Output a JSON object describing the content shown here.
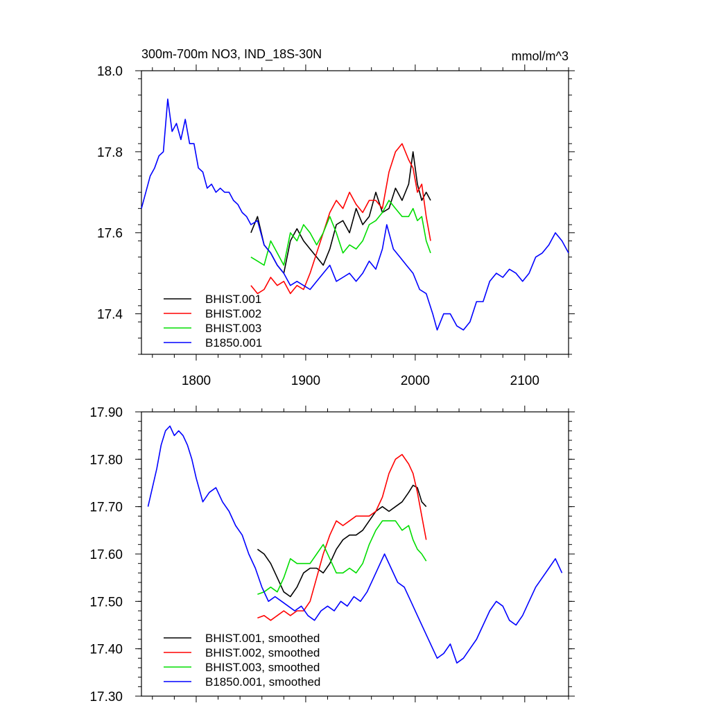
{
  "chart_data": [
    {
      "type": "line",
      "title": "300m-700m NO3, IND_18S-30N",
      "units": "mmol/m^3",
      "xlim": [
        1750,
        2140
      ],
      "ylim": [
        17.3,
        18.0
      ],
      "x_ticks": [
        1800,
        1900,
        2000,
        2100
      ],
      "x_tick_labels": [
        "1800",
        "1900",
        "2000",
        "2100"
      ],
      "y_ticks": [
        17.4,
        17.6,
        17.8,
        18.0
      ],
      "y_tick_labels": [
        "17.4",
        "17.6",
        "17.8",
        "18.0"
      ],
      "legend_position": "bottom-left",
      "series": [
        {
          "name": "BHIST.001",
          "color": "#000000",
          "x": [
            1850,
            1856,
            1862,
            1868,
            1874,
            1880,
            1886,
            1892,
            1898,
            1904,
            1910,
            1916,
            1922,
            1928,
            1934,
            1940,
            1946,
            1952,
            1958,
            1964,
            1970,
            1976,
            1982,
            1988,
            1994,
            1998,
            2002,
            2006,
            2010,
            2014
          ],
          "y": [
            17.6,
            17.64,
            17.57,
            17.55,
            17.52,
            17.5,
            17.58,
            17.61,
            17.58,
            17.56,
            17.54,
            17.52,
            17.56,
            17.62,
            17.63,
            17.6,
            17.66,
            17.62,
            17.64,
            17.7,
            17.65,
            17.66,
            17.71,
            17.68,
            17.72,
            17.8,
            17.72,
            17.68,
            17.7,
            17.68
          ]
        },
        {
          "name": "BHIST.002",
          "color": "#ff0000",
          "x": [
            1850,
            1856,
            1862,
            1868,
            1874,
            1880,
            1886,
            1892,
            1898,
            1904,
            1910,
            1916,
            1922,
            1928,
            1934,
            1940,
            1946,
            1952,
            1958,
            1964,
            1970,
            1976,
            1982,
            1988,
            1994,
            1998,
            2002,
            2006,
            2010,
            2014
          ],
          "y": [
            17.47,
            17.45,
            17.46,
            17.49,
            17.47,
            17.48,
            17.45,
            17.47,
            17.46,
            17.5,
            17.55,
            17.6,
            17.65,
            17.68,
            17.66,
            17.7,
            17.67,
            17.65,
            17.68,
            17.68,
            17.66,
            17.75,
            17.8,
            17.82,
            17.78,
            17.76,
            17.7,
            17.72,
            17.64,
            17.58
          ]
        },
        {
          "name": "BHIST.003",
          "color": "#00dd00",
          "x": [
            1850,
            1856,
            1862,
            1868,
            1874,
            1880,
            1886,
            1892,
            1898,
            1904,
            1910,
            1916,
            1922,
            1928,
            1934,
            1940,
            1946,
            1952,
            1958,
            1964,
            1970,
            1976,
            1982,
            1988,
            1994,
            1998,
            2002,
            2006,
            2010,
            2014
          ],
          "y": [
            17.54,
            17.53,
            17.52,
            17.58,
            17.55,
            17.52,
            17.6,
            17.58,
            17.62,
            17.6,
            17.57,
            17.6,
            17.64,
            17.6,
            17.55,
            17.57,
            17.56,
            17.58,
            17.62,
            17.63,
            17.65,
            17.68,
            17.66,
            17.64,
            17.64,
            17.66,
            17.63,
            17.64,
            17.58,
            17.55
          ]
        },
        {
          "name": "B1850.001",
          "color": "#0000ff",
          "x": [
            1750,
            1754,
            1758,
            1762,
            1766,
            1770,
            1774,
            1778,
            1782,
            1786,
            1790,
            1794,
            1798,
            1802,
            1806,
            1810,
            1814,
            1818,
            1822,
            1826,
            1830,
            1834,
            1838,
            1842,
            1846,
            1850,
            1856,
            1862,
            1868,
            1874,
            1880,
            1886,
            1892,
            1898,
            1904,
            1910,
            1916,
            1922,
            1928,
            1934,
            1940,
            1946,
            1952,
            1958,
            1964,
            1970,
            1974,
            1980,
            1986,
            1992,
            1998,
            2004,
            2010,
            2016,
            2020,
            2026,
            2032,
            2038,
            2044,
            2050,
            2056,
            2062,
            2068,
            2074,
            2080,
            2086,
            2092,
            2098,
            2104,
            2110,
            2116,
            2122,
            2128,
            2134,
            2140
          ],
          "y": [
            17.66,
            17.7,
            17.74,
            17.76,
            17.79,
            17.8,
            17.93,
            17.85,
            17.87,
            17.83,
            17.88,
            17.82,
            17.82,
            17.76,
            17.75,
            17.71,
            17.72,
            17.7,
            17.71,
            17.7,
            17.7,
            17.68,
            17.67,
            17.65,
            17.64,
            17.62,
            17.63,
            17.57,
            17.55,
            17.52,
            17.5,
            17.47,
            17.48,
            17.47,
            17.46,
            17.48,
            17.5,
            17.52,
            17.48,
            17.49,
            17.5,
            17.48,
            17.5,
            17.53,
            17.51,
            17.56,
            17.62,
            17.56,
            17.54,
            17.52,
            17.5,
            17.46,
            17.45,
            17.4,
            17.36,
            17.4,
            17.4,
            17.37,
            17.36,
            17.38,
            17.43,
            17.43,
            17.48,
            17.5,
            17.49,
            17.51,
            17.5,
            17.48,
            17.5,
            17.54,
            17.55,
            17.57,
            17.6,
            17.58,
            17.55
          ]
        }
      ]
    },
    {
      "type": "line",
      "xlim": [
        1750,
        2140
      ],
      "ylim": [
        17.3,
        17.9
      ],
      "x_ticks": [
        1800,
        1900,
        2000,
        2100
      ],
      "y_ticks": [
        17.3,
        17.4,
        17.5,
        17.6,
        17.7,
        17.8,
        17.9
      ],
      "y_tick_labels": [
        "17.30",
        "17.40",
        "17.50",
        "17.60",
        "17.70",
        "17.80",
        "17.90"
      ],
      "legend_position": "bottom-left",
      "series": [
        {
          "name": "BHIST.001, smoothed",
          "color": "#000000",
          "x": [
            1856,
            1862,
            1868,
            1874,
            1880,
            1886,
            1892,
            1898,
            1904,
            1910,
            1916,
            1922,
            1928,
            1934,
            1940,
            1946,
            1952,
            1958,
            1964,
            1970,
            1976,
            1982,
            1988,
            1994,
            1998,
            2002,
            2006,
            2010
          ],
          "y": [
            17.61,
            17.6,
            17.58,
            17.55,
            17.52,
            17.51,
            17.53,
            17.56,
            17.57,
            17.57,
            17.56,
            17.58,
            17.61,
            17.63,
            17.64,
            17.64,
            17.65,
            17.67,
            17.69,
            17.7,
            17.69,
            17.7,
            17.71,
            17.73,
            17.745,
            17.74,
            17.71,
            17.7
          ]
        },
        {
          "name": "BHIST.002, smoothed",
          "color": "#ff0000",
          "x": [
            1856,
            1862,
            1868,
            1874,
            1880,
            1886,
            1892,
            1898,
            1904,
            1910,
            1916,
            1922,
            1928,
            1934,
            1940,
            1946,
            1952,
            1958,
            1964,
            1970,
            1976,
            1982,
            1988,
            1994,
            1998,
            2002,
            2006,
            2010
          ],
          "y": [
            17.465,
            17.47,
            17.46,
            17.47,
            17.48,
            17.47,
            17.48,
            17.48,
            17.5,
            17.55,
            17.6,
            17.64,
            17.67,
            17.66,
            17.67,
            17.68,
            17.68,
            17.68,
            17.69,
            17.72,
            17.77,
            17.8,
            17.81,
            17.79,
            17.77,
            17.73,
            17.68,
            17.63
          ]
        },
        {
          "name": "BHIST.003, smoothed",
          "color": "#00dd00",
          "x": [
            1856,
            1862,
            1868,
            1874,
            1880,
            1886,
            1892,
            1898,
            1904,
            1910,
            1916,
            1922,
            1928,
            1934,
            1940,
            1946,
            1952,
            1958,
            1964,
            1970,
            1976,
            1982,
            1988,
            1994,
            1998,
            2002,
            2006,
            2010
          ],
          "y": [
            17.515,
            17.52,
            17.53,
            17.52,
            17.55,
            17.59,
            17.58,
            17.58,
            17.58,
            17.6,
            17.62,
            17.59,
            17.56,
            17.56,
            17.57,
            17.56,
            17.58,
            17.62,
            17.65,
            17.67,
            17.67,
            17.67,
            17.65,
            17.66,
            17.63,
            17.61,
            17.6,
            17.585
          ]
        },
        {
          "name": "B1850.001, smoothed",
          "color": "#0000ff",
          "x": [
            1756,
            1760,
            1764,
            1768,
            1772,
            1776,
            1780,
            1784,
            1788,
            1792,
            1796,
            1800,
            1806,
            1812,
            1818,
            1824,
            1830,
            1836,
            1842,
            1848,
            1854,
            1860,
            1866,
            1872,
            1878,
            1884,
            1890,
            1896,
            1902,
            1908,
            1914,
            1920,
            1926,
            1932,
            1938,
            1944,
            1950,
            1956,
            1962,
            1968,
            1972,
            1978,
            1984,
            1990,
            1996,
            2002,
            2008,
            2014,
            2020,
            2026,
            2032,
            2038,
            2044,
            2050,
            2056,
            2062,
            2068,
            2074,
            2080,
            2086,
            2092,
            2098,
            2104,
            2110,
            2116,
            2122,
            2128,
            2134
          ],
          "y": [
            17.7,
            17.74,
            17.78,
            17.83,
            17.86,
            17.87,
            17.85,
            17.86,
            17.85,
            17.83,
            17.8,
            17.76,
            17.71,
            17.73,
            17.74,
            17.71,
            17.69,
            17.66,
            17.64,
            17.6,
            17.57,
            17.53,
            17.5,
            17.51,
            17.5,
            17.49,
            17.48,
            17.49,
            17.47,
            17.46,
            17.48,
            17.49,
            17.48,
            17.5,
            17.49,
            17.51,
            17.5,
            17.52,
            17.55,
            17.58,
            17.6,
            17.57,
            17.54,
            17.53,
            17.5,
            17.47,
            17.44,
            17.41,
            17.38,
            17.39,
            17.41,
            17.37,
            17.38,
            17.4,
            17.42,
            17.45,
            17.48,
            17.5,
            17.49,
            17.46,
            17.45,
            17.47,
            17.5,
            17.53,
            17.55,
            17.57,
            17.59,
            17.56
          ]
        }
      ]
    }
  ]
}
